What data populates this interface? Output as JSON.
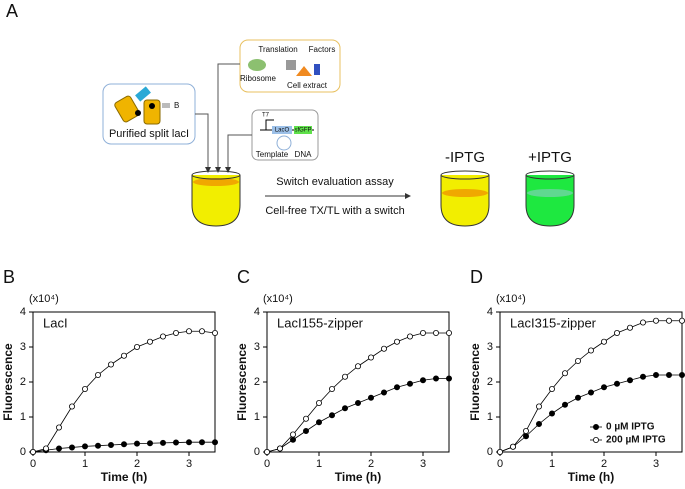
{
  "panel_a": {
    "label": "A",
    "factors_box": {
      "title_left": "Translation",
      "title_right": "Factors",
      "ribosome": "Ribosome",
      "cell_extract": "Cell extract"
    },
    "protein_box": {
      "tag": "B",
      "caption": "Purified split lacI"
    },
    "dna_box": {
      "promoter": "T7",
      "operator": "LacO",
      "gene": "sfGFP",
      "caption_left": "Template",
      "caption_right": "DNA"
    },
    "arrow_top": "Switch evaluation assay",
    "arrow_bottom": "Cell-free TX/TL with a switch",
    "tube_minus": "-IPTG",
    "tube_plus": "+IPTG"
  },
  "chart_data": [
    {
      "type": "line",
      "panel": "B",
      "label": "LacI",
      "x_label": "Time (h)",
      "y_label": "Fluorescence",
      "y_unit": "(x10⁴)",
      "x": [
        0,
        0.25,
        0.5,
        0.75,
        1,
        1.25,
        1.5,
        1.75,
        2,
        2.25,
        2.5,
        2.75,
        3,
        3.25,
        3.5
      ],
      "series": [
        {
          "color": "#000000",
          "marker_fill": "#000000",
          "values": [
            0,
            0.05,
            0.1,
            0.13,
            0.16,
            0.18,
            0.2,
            0.22,
            0.24,
            0.25,
            0.26,
            0.27,
            0.28,
            0.28,
            0.28
          ]
        },
        {
          "color": "#000000",
          "marker_fill": "#ffffff",
          "values": [
            0,
            0.1,
            0.7,
            1.3,
            1.8,
            2.2,
            2.5,
            2.75,
            3.0,
            3.15,
            3.3,
            3.4,
            3.45,
            3.45,
            3.4
          ]
        }
      ],
      "xlim": [
        0,
        3.5
      ],
      "ylim": [
        0,
        4
      ],
      "xticks": [
        0,
        1,
        2,
        3
      ],
      "yticks": [
        0,
        1,
        2,
        3,
        4
      ]
    },
    {
      "type": "line",
      "panel": "C",
      "label": "LacI155-zipper",
      "x_label": "Time (h)",
      "y_label": "Fluorescence",
      "y_unit": "(x10⁴)",
      "x": [
        0,
        0.25,
        0.5,
        0.75,
        1,
        1.25,
        1.5,
        1.75,
        2,
        2.25,
        2.5,
        2.75,
        3,
        3.25,
        3.5
      ],
      "series": [
        {
          "color": "#000000",
          "marker_fill": "#000000",
          "values": [
            0,
            0.1,
            0.35,
            0.6,
            0.85,
            1.05,
            1.25,
            1.4,
            1.55,
            1.7,
            1.85,
            1.95,
            2.05,
            2.1,
            2.1
          ]
        },
        {
          "color": "#000000",
          "marker_fill": "#ffffff",
          "values": [
            0,
            0.1,
            0.5,
            0.95,
            1.4,
            1.8,
            2.15,
            2.45,
            2.7,
            2.95,
            3.15,
            3.3,
            3.4,
            3.4,
            3.4
          ]
        }
      ],
      "xlim": [
        0,
        3.5
      ],
      "ylim": [
        0,
        4
      ],
      "xticks": [
        0,
        1,
        2,
        3
      ],
      "yticks": [
        0,
        1,
        2,
        3,
        4
      ]
    },
    {
      "type": "line",
      "panel": "D",
      "label": "LacI315-zipper",
      "x_label": "Time (h)",
      "y_label": "Fluorescence",
      "y_unit": "(x10⁴)",
      "x": [
        0,
        0.25,
        0.5,
        0.75,
        1,
        1.25,
        1.5,
        1.75,
        2,
        2.25,
        2.5,
        2.75,
        3,
        3.25,
        3.5
      ],
      "series": [
        {
          "name": "0 µM IPTG",
          "color": "#000000",
          "marker_fill": "#000000",
          "values": [
            0,
            0.15,
            0.45,
            0.8,
            1.1,
            1.35,
            1.55,
            1.7,
            1.85,
            1.95,
            2.05,
            2.15,
            2.2,
            2.2,
            2.2
          ]
        },
        {
          "name": "200 µM IPTG",
          "color": "#000000",
          "marker_fill": "#ffffff",
          "values": [
            0,
            0.15,
            0.6,
            1.3,
            1.8,
            2.25,
            2.6,
            2.9,
            3.15,
            3.4,
            3.55,
            3.7,
            3.75,
            3.75,
            3.75
          ]
        }
      ],
      "xlim": [
        0,
        3.5
      ],
      "ylim": [
        0,
        4
      ],
      "xticks": [
        0,
        1,
        2,
        3
      ],
      "yticks": [
        0,
        1,
        2,
        3,
        4
      ],
      "legend": "lower right"
    }
  ]
}
